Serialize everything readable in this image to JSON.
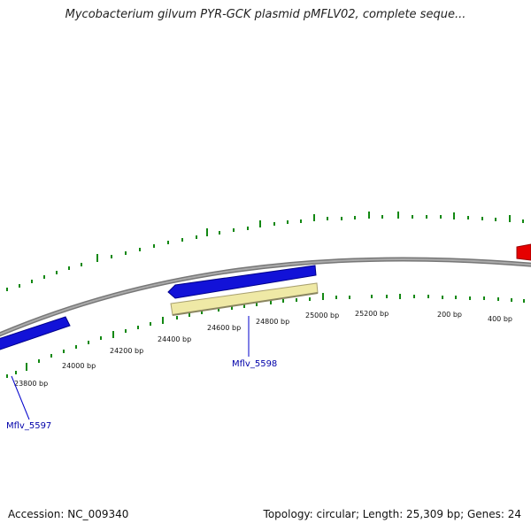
{
  "title": "Mycobacterium gilvum PYR-GCK plasmid pMFLV02, complete seque...",
  "accession": "Accession: NC_009340",
  "topology": "Topology: circular; Length: 25,309 bp; Genes: 24",
  "colors": {
    "backbone": "#8a8a8a",
    "forward_gene": "#1212d8",
    "reverse_gene": "#e60000",
    "highlight_gene": "#efe9a6",
    "tick": "#128812",
    "label": "#0000aa"
  },
  "tick_labels": [
    "23800 bp",
    "24000 bp",
    "24200 bp",
    "24400 bp",
    "24600 bp",
    "24800 bp",
    "25000 bp",
    "25200 bp",
    "200 bp",
    "400 bp"
  ],
  "gene_labels": [
    "Mflv_5597",
    "Mflv_5598"
  ]
}
